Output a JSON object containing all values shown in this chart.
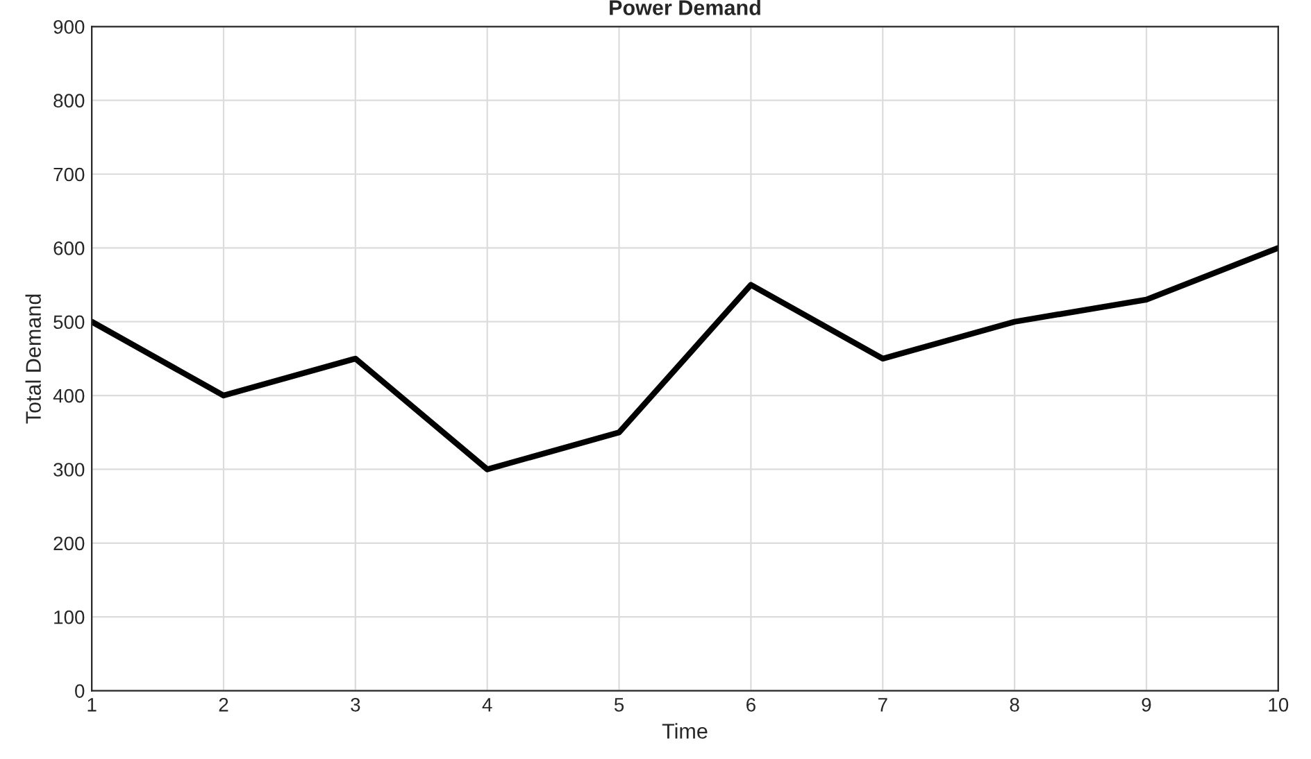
{
  "chart_data": {
    "type": "line",
    "title": "Power Demand",
    "xlabel": "Time",
    "ylabel": "Total Demand",
    "x": [
      1,
      2,
      3,
      4,
      5,
      6,
      7,
      8,
      9,
      10
    ],
    "series": [
      {
        "color": "#000000",
        "values": [
          500,
          400,
          450,
          300,
          350,
          550,
          450,
          500,
          530,
          600
        ]
      }
    ],
    "xlim": [
      1,
      10
    ],
    "xticks": [
      1,
      2,
      3,
      4,
      5,
      6,
      7,
      8,
      9,
      10
    ],
    "ylim": [
      0,
      900
    ],
    "yticks": [
      0,
      100,
      200,
      300,
      400,
      500,
      600,
      700,
      800,
      900
    ],
    "grid": true
  }
}
